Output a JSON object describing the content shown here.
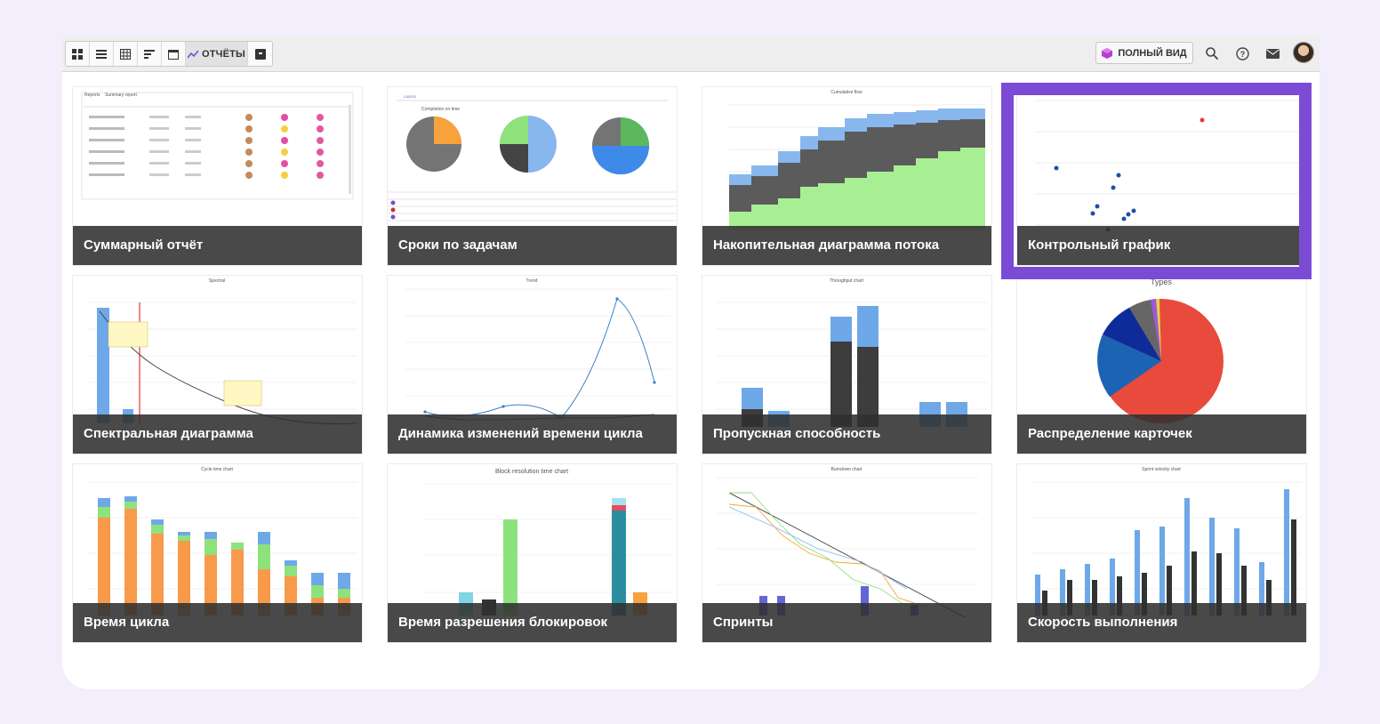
{
  "toolbar": {
    "view_buttons": [
      "dashboard-view",
      "list-view",
      "table-view",
      "timeline-view",
      "calendar-view",
      "reports-view",
      "archive-view"
    ],
    "reports_label": "ОТЧЁТЫ",
    "full_view_label": "ПОЛНЫЙ ВИД"
  },
  "reports": [
    {
      "title": "Суммарный отчёт",
      "thumb_title": "Summary report",
      "thumb_breadcrumb": "Reports"
    },
    {
      "title": "Сроки по задачам",
      "thumb_title": "Completion on time"
    },
    {
      "title": "Накопительная диаграмма потока",
      "thumb_title": "Cumulative flow"
    },
    {
      "title": "Контрольный график",
      "thumb_title": ""
    },
    {
      "title": "Спектральная диаграмма",
      "thumb_title": "Spectral"
    },
    {
      "title": "Динамика изменений времени цикла",
      "thumb_title": "Trend"
    },
    {
      "title": "Пропускная способность",
      "thumb_title": "Throughput chart"
    },
    {
      "title": "Распределение карточек",
      "thumb_title": "Types"
    },
    {
      "title": "Время цикла",
      "thumb_title": "Cycle time chart"
    },
    {
      "title": "Время разрешения блокировок",
      "thumb_title": "Block resolution time chart"
    },
    {
      "title": "Спринты",
      "thumb_title": "Burndown chart"
    },
    {
      "title": "Скорость выполнения",
      "thumb_title": "Sprint velocity chart"
    }
  ],
  "colors": {
    "accent": "#7c4bd6",
    "caption_bg": "#303030",
    "page_bg": "#f3eefb"
  }
}
